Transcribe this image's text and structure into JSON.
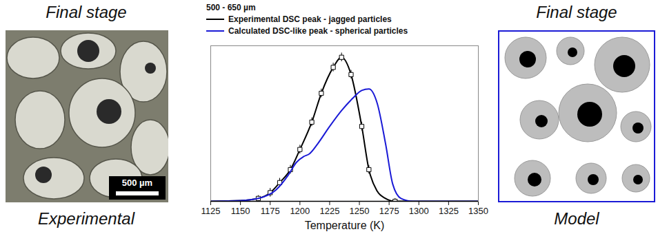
{
  "panels": [
    {
      "title": "Final stage",
      "caption": "Experimental",
      "scale_bar": "500 µm"
    },
    {
      "title": "Final stage",
      "caption": "Model"
    }
  ],
  "chart_data": {
    "type": "line",
    "title": "500 - 650 µm",
    "x_label": "Temperature (K)",
    "xlim": [
      1125,
      1350
    ],
    "xticks": [
      1125,
      1150,
      1175,
      1200,
      1225,
      1250,
      1275,
      1300,
      1325,
      1350
    ],
    "ylim": [
      0,
      1.08
    ],
    "yticks": [],
    "tick_labels": "x",
    "legend": "top-left",
    "series": [
      {
        "name": "Experimental DSC peak - jagged particles",
        "color": "#000000",
        "marker": "square",
        "x": [
          1125,
          1150,
          1165,
          1175,
          1183,
          1192,
          1200,
          1210,
          1218,
          1228,
          1235,
          1243,
          1252,
          1258,
          1265,
          1272,
          1280,
          1300,
          1350
        ],
        "values": [
          0,
          0.005,
          0.02,
          0.06,
          0.13,
          0.22,
          0.36,
          0.55,
          0.75,
          0.93,
          1.0,
          0.88,
          0.52,
          0.22,
          0.07,
          0.02,
          0,
          0,
          0
        ],
        "error": [
          null,
          null,
          0.02,
          0.03,
          0.03,
          0.03,
          0.03,
          0.03,
          0.03,
          0.03,
          0.03,
          0.03,
          0.03,
          0.03,
          null,
          null,
          0.02,
          null,
          null
        ]
      },
      {
        "name": "Calculated DSC-like peak - spherical particles",
        "color": "#1a1ad6",
        "x": [
          1125,
          1150,
          1165,
          1180,
          1190,
          1197,
          1203,
          1208,
          1215,
          1225,
          1235,
          1245,
          1252,
          1258,
          1265,
          1272,
          1278,
          1285,
          1295,
          1350
        ],
        "values": [
          0,
          0.005,
          0.02,
          0.08,
          0.18,
          0.27,
          0.31,
          0.33,
          0.4,
          0.52,
          0.63,
          0.72,
          0.77,
          0.78,
          0.68,
          0.4,
          0.12,
          0.02,
          0,
          0
        ]
      }
    ]
  }
}
